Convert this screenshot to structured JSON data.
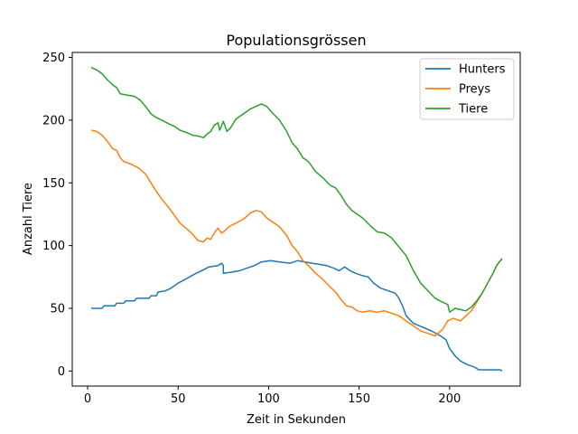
{
  "chart_data": {
    "type": "line",
    "title": "Populationsgrössen",
    "xlabel": "Zeit in Sekunden",
    "ylabel": "Anzahl Tiere",
    "xlim": [
      -8.5,
      239
    ],
    "ylim": [
      -12,
      254
    ],
    "xticks": [
      0,
      50,
      100,
      150,
      200
    ],
    "yticks": [
      0,
      50,
      100,
      150,
      200,
      250
    ],
    "grid": false,
    "legend_position": "top-right",
    "series": [
      {
        "name": "Hunters",
        "color": "#1f77b4",
        "points": [
          [
            2,
            50
          ],
          [
            8,
            50
          ],
          [
            9,
            52
          ],
          [
            15,
            52
          ],
          [
            16,
            54
          ],
          [
            20,
            54
          ],
          [
            21,
            56
          ],
          [
            26,
            56
          ],
          [
            27,
            58
          ],
          [
            34,
            58
          ],
          [
            35,
            60
          ],
          [
            38,
            60
          ],
          [
            39,
            63
          ],
          [
            43,
            64
          ],
          [
            46,
            66
          ],
          [
            50,
            70
          ],
          [
            55,
            74
          ],
          [
            60,
            78
          ],
          [
            63,
            80
          ],
          [
            67,
            83
          ],
          [
            72,
            84
          ],
          [
            74,
            86
          ],
          [
            75,
            84
          ],
          [
            75,
            78
          ],
          [
            80,
            79
          ],
          [
            84,
            80
          ],
          [
            88,
            82
          ],
          [
            92,
            84
          ],
          [
            96,
            87
          ],
          [
            101,
            88
          ],
          [
            106,
            87
          ],
          [
            112,
            86
          ],
          [
            116,
            88
          ],
          [
            120,
            87
          ],
          [
            124,
            86
          ],
          [
            128,
            85
          ],
          [
            132,
            84
          ],
          [
            136,
            82
          ],
          [
            139,
            80
          ],
          [
            142,
            83
          ],
          [
            145,
            80
          ],
          [
            148,
            78
          ],
          [
            152,
            76
          ],
          [
            155,
            75
          ],
          [
            158,
            70
          ],
          [
            162,
            66
          ],
          [
            166,
            64
          ],
          [
            170,
            62
          ],
          [
            172,
            58
          ],
          [
            174,
            52
          ],
          [
            176,
            44
          ],
          [
            180,
            38
          ],
          [
            185,
            35
          ],
          [
            190,
            32
          ],
          [
            195,
            28
          ],
          [
            198,
            25
          ],
          [
            200,
            18
          ],
          [
            203,
            12
          ],
          [
            206,
            8
          ],
          [
            210,
            5
          ],
          [
            214,
            3
          ],
          [
            216,
            1
          ],
          [
            222,
            1
          ],
          [
            228,
            1
          ],
          [
            229,
            0
          ]
        ]
      },
      {
        "name": "Preys",
        "color": "#ff7f0e",
        "points": [
          [
            2,
            192
          ],
          [
            5,
            191
          ],
          [
            8,
            188
          ],
          [
            11,
            183
          ],
          [
            14,
            177
          ],
          [
            16,
            176
          ],
          [
            18,
            170
          ],
          [
            20,
            167
          ],
          [
            24,
            165
          ],
          [
            28,
            162
          ],
          [
            32,
            157
          ],
          [
            35,
            150
          ],
          [
            38,
            143
          ],
          [
            41,
            137
          ],
          [
            45,
            130
          ],
          [
            48,
            124
          ],
          [
            51,
            118
          ],
          [
            55,
            113
          ],
          [
            58,
            109
          ],
          [
            61,
            104
          ],
          [
            64,
            103
          ],
          [
            66,
            106
          ],
          [
            68,
            105
          ],
          [
            70,
            110
          ],
          [
            72,
            114
          ],
          [
            74,
            110
          ],
          [
            76,
            112
          ],
          [
            78,
            115
          ],
          [
            82,
            118
          ],
          [
            86,
            121
          ],
          [
            90,
            126
          ],
          [
            93,
            128
          ],
          [
            96,
            127
          ],
          [
            99,
            122
          ],
          [
            102,
            119
          ],
          [
            106,
            115
          ],
          [
            110,
            108
          ],
          [
            113,
            100
          ],
          [
            116,
            95
          ],
          [
            119,
            88
          ],
          [
            122,
            84
          ],
          [
            126,
            78
          ],
          [
            130,
            73
          ],
          [
            134,
            67
          ],
          [
            137,
            63
          ],
          [
            140,
            57
          ],
          [
            143,
            52
          ],
          [
            146,
            51
          ],
          [
            149,
            48
          ],
          [
            152,
            47
          ],
          [
            156,
            48
          ],
          [
            160,
            47
          ],
          [
            164,
            48
          ],
          [
            168,
            46
          ],
          [
            172,
            44
          ],
          [
            176,
            40
          ],
          [
            180,
            36
          ],
          [
            184,
            32
          ],
          [
            188,
            30
          ],
          [
            192,
            28
          ],
          [
            196,
            33
          ],
          [
            199,
            40
          ],
          [
            202,
            42
          ],
          [
            206,
            40
          ],
          [
            209,
            44
          ],
          [
            212,
            48
          ],
          [
            215,
            55
          ],
          [
            218,
            62
          ],
          [
            221,
            70
          ],
          [
            224,
            78
          ],
          [
            226,
            84
          ],
          [
            228,
            88
          ],
          [
            229,
            90
          ]
        ]
      },
      {
        "name": "Tiere",
        "color": "#2ca02c",
        "points": [
          [
            2,
            242
          ],
          [
            5,
            240
          ],
          [
            8,
            237
          ],
          [
            11,
            232
          ],
          [
            14,
            228
          ],
          [
            16,
            226
          ],
          [
            18,
            221
          ],
          [
            22,
            220
          ],
          [
            26,
            219
          ],
          [
            29,
            216
          ],
          [
            32,
            211
          ],
          [
            35,
            205
          ],
          [
            38,
            202
          ],
          [
            41,
            200
          ],
          [
            45,
            197
          ],
          [
            48,
            195
          ],
          [
            51,
            192
          ],
          [
            55,
            190
          ],
          [
            58,
            188
          ],
          [
            62,
            187
          ],
          [
            64,
            186
          ],
          [
            66,
            189
          ],
          [
            68,
            191
          ],
          [
            70,
            196
          ],
          [
            72,
            198
          ],
          [
            73,
            192
          ],
          [
            75,
            199
          ],
          [
            77,
            191
          ],
          [
            79,
            194
          ],
          [
            82,
            201
          ],
          [
            86,
            205
          ],
          [
            90,
            209
          ],
          [
            93,
            211
          ],
          [
            96,
            213
          ],
          [
            99,
            211
          ],
          [
            102,
            206
          ],
          [
            106,
            200
          ],
          [
            110,
            191
          ],
          [
            113,
            182
          ],
          [
            116,
            177
          ],
          [
            119,
            170
          ],
          [
            122,
            167
          ],
          [
            126,
            159
          ],
          [
            130,
            154
          ],
          [
            134,
            148
          ],
          [
            137,
            146
          ],
          [
            140,
            140
          ],
          [
            143,
            133
          ],
          [
            146,
            128
          ],
          [
            149,
            125
          ],
          [
            152,
            122
          ],
          [
            156,
            116
          ],
          [
            160,
            111
          ],
          [
            164,
            110
          ],
          [
            168,
            106
          ],
          [
            172,
            99
          ],
          [
            176,
            92
          ],
          [
            180,
            80
          ],
          [
            184,
            70
          ],
          [
            188,
            64
          ],
          [
            192,
            58
          ],
          [
            196,
            55
          ],
          [
            199,
            53
          ],
          [
            200,
            47
          ],
          [
            203,
            50
          ],
          [
            206,
            49
          ],
          [
            209,
            48
          ],
          [
            212,
            51
          ],
          [
            215,
            56
          ],
          [
            218,
            62
          ],
          [
            221,
            70
          ],
          [
            224,
            78
          ],
          [
            226,
            84
          ],
          [
            228,
            88
          ],
          [
            229,
            89
          ]
        ]
      }
    ]
  }
}
